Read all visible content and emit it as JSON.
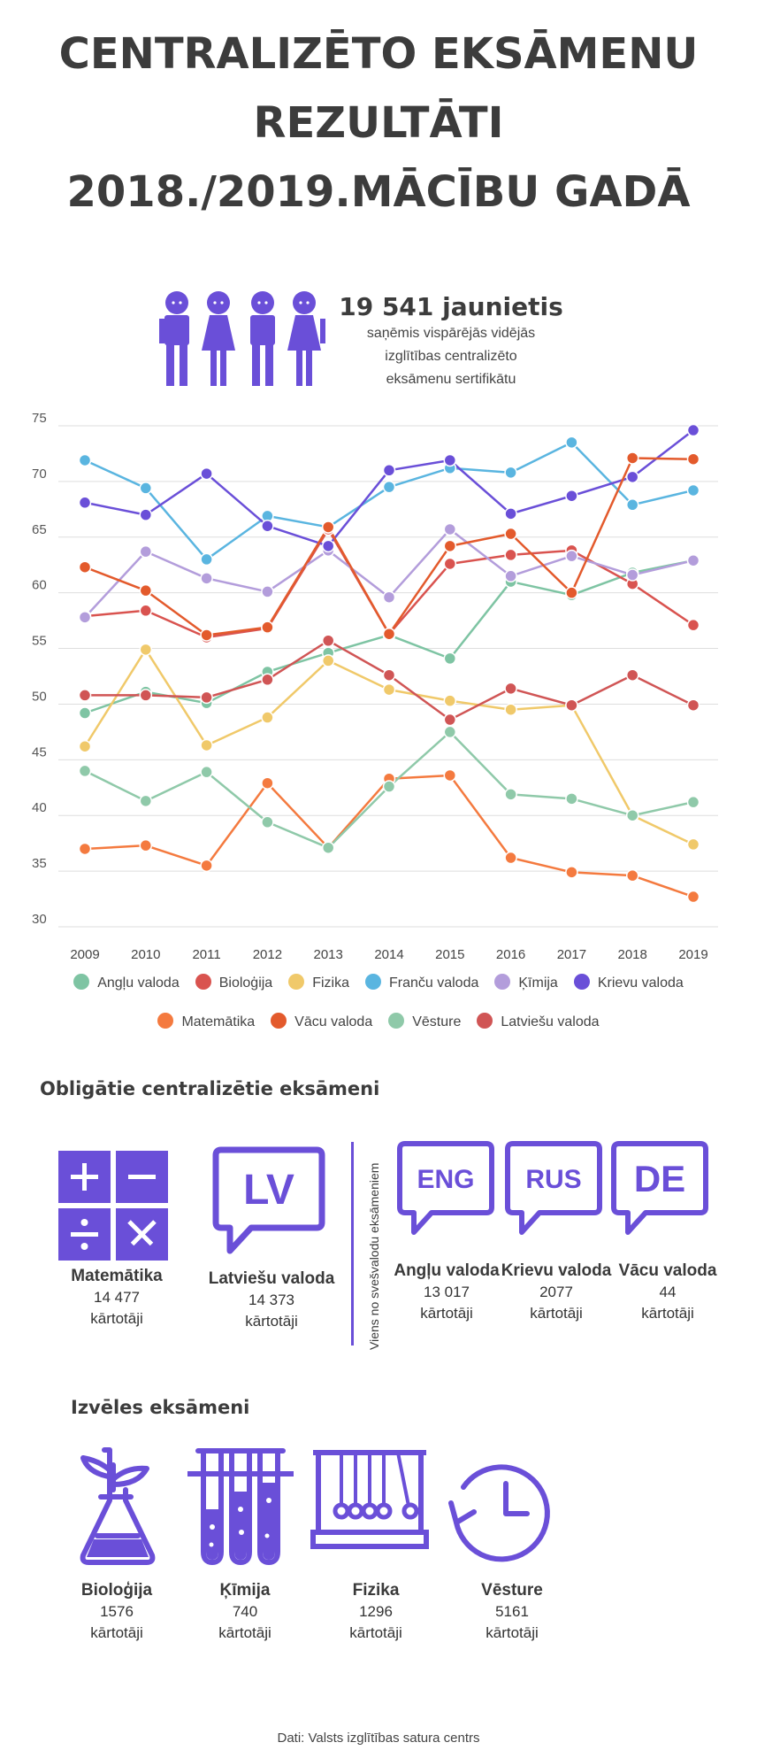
{
  "title": {
    "line1": "CENTRALIZĒTO EKSĀMENU",
    "line2": "REZULTĀTI",
    "line3": "2018./2019.MĀCĪBU GADĀ"
  },
  "headline": {
    "number": "19 541 jaunietis",
    "line1": "saņēmis vispārējās vidējās",
    "line2": "izglītības centralizēto",
    "line3": "eksāmenu sertifikātu"
  },
  "chart_data": {
    "type": "line",
    "categories": [
      "2009",
      "2010",
      "2011",
      "2012",
      "2013",
      "2014",
      "2015",
      "2016",
      "2017",
      "2018",
      "2019"
    ],
    "ylim": [
      30,
      75
    ],
    "yticks": [
      "30",
      "35",
      "40",
      "45",
      "50",
      "55",
      "60",
      "65",
      "70",
      "75"
    ],
    "grid": true,
    "legend_position": "bottom",
    "series": [
      {
        "name": "Angļu valoda",
        "color": "#7ec4a3",
        "values": [
          49.2,
          51.1,
          50.1,
          52.9,
          54.6,
          56.2,
          54.1,
          61.0,
          59.8,
          61.8,
          62.9
        ]
      },
      {
        "name": "Bioloģija",
        "color": "#d9534f",
        "values": [
          57.9,
          58.4,
          56.0,
          56.8,
          65.7,
          56.3,
          62.6,
          63.4,
          63.8,
          60.8,
          57.1
        ]
      },
      {
        "name": "Fizika",
        "color": "#f0c96a",
        "values": [
          46.2,
          54.9,
          46.3,
          48.8,
          53.9,
          51.3,
          50.3,
          49.5,
          49.9,
          40.0,
          37.4
        ]
      },
      {
        "name": "Franču valoda",
        "color": "#5ab5e0",
        "values": [
          71.9,
          69.4,
          63.0,
          66.9,
          65.9,
          69.5,
          71.2,
          70.8,
          73.5,
          67.9,
          69.2
        ]
      },
      {
        "name": "Ķīmija",
        "color": "#b39ddb",
        "values": [
          57.8,
          63.7,
          61.3,
          60.1,
          63.8,
          59.6,
          65.7,
          61.5,
          63.3,
          61.6,
          62.9
        ]
      },
      {
        "name": "Krievu valoda",
        "color": "#6a4fd8",
        "values": [
          68.1,
          67.0,
          70.7,
          66.0,
          64.2,
          71.0,
          71.9,
          67.1,
          68.7,
          70.4,
          74.6
        ]
      },
      {
        "name": "Matemātika",
        "color": "#f47a3f",
        "values": [
          37.0,
          37.3,
          35.5,
          42.9,
          37.1,
          43.3,
          43.6,
          36.2,
          34.9,
          34.6,
          32.7
        ]
      },
      {
        "name": "Vācu valoda",
        "color": "#e35a2c",
        "values": [
          62.3,
          60.2,
          56.2,
          56.9,
          65.9,
          56.3,
          64.2,
          65.3,
          60.0,
          72.1,
          72.0
        ]
      },
      {
        "name": "Vēsture",
        "color": "#8fc9a9",
        "values": [
          44.0,
          41.3,
          43.9,
          39.4,
          37.1,
          42.6,
          47.5,
          41.9,
          41.5,
          40.0,
          41.2
        ]
      },
      {
        "name": "Latviešu valoda",
        "color": "#d05555",
        "values": [
          50.8,
          50.8,
          50.6,
          52.2,
          55.7,
          52.6,
          48.6,
          51.4,
          49.9,
          52.6,
          49.9
        ]
      }
    ]
  },
  "legend": {
    "row1": [
      {
        "label": "Angļu valoda",
        "color": "#7ec4a3"
      },
      {
        "label": "Bioloģija",
        "color": "#d9534f"
      },
      {
        "label": "Fizika",
        "color": "#f0c96a"
      },
      {
        "label": "Franču valoda",
        "color": "#5ab5e0"
      },
      {
        "label": "Ķīmija",
        "color": "#b39ddb"
      },
      {
        "label": "Krievu valoda",
        "color": "#6a4fd8"
      }
    ],
    "row2": [
      {
        "label": "Matemātika",
        "color": "#f47a3f"
      },
      {
        "label": "Vācu valoda",
        "color": "#e35a2c"
      },
      {
        "label": "Vēsture",
        "color": "#8fc9a9"
      },
      {
        "label": "Latviešu valoda",
        "color": "#d05555"
      }
    ]
  },
  "mandatory": {
    "heading": "Obligātie centralizētie eksāmeni",
    "divider_label": "Viens no svešvalodu eksāmeniem",
    "exams": [
      {
        "name": "Matemātika",
        "count": "14 477",
        "unit": "kārtotāji"
      },
      {
        "name": "Latviešu valoda",
        "count": "14 373",
        "unit": "kārtotāji",
        "icon_text": "LV"
      },
      {
        "name": "Angļu valoda",
        "count": "13 017",
        "unit": "kārtotāji",
        "icon_text": "ENG"
      },
      {
        "name": "Krievu valoda",
        "count": "2077",
        "unit": "kārtotāji",
        "icon_text": "RUS"
      },
      {
        "name": "Vācu valoda",
        "count": "44",
        "unit": "kārtotāji",
        "icon_text": "DE"
      }
    ]
  },
  "optional": {
    "heading": "Izvēles eksāmeni",
    "exams": [
      {
        "name": "Bioloģija",
        "count": "1576",
        "unit": "kārtotāji"
      },
      {
        "name": "Ķīmija",
        "count": "740",
        "unit": "kārtotāji"
      },
      {
        "name": "Fizika",
        "count": "1296",
        "unit": "kārtotāji"
      },
      {
        "name": "Vēsture",
        "count": "5161",
        "unit": "kārtotāji"
      }
    ]
  },
  "source": "Dati: Valsts izglītības satura centrs",
  "accent_color": "#6a4fd8"
}
